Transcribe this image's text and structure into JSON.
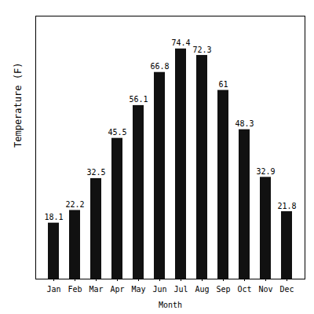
{
  "chart_data": {
    "type": "bar",
    "categories": [
      "Jan",
      "Feb",
      "Mar",
      "Apr",
      "May",
      "Jun",
      "Jul",
      "Aug",
      "Sep",
      "Oct",
      "Nov",
      "Dec"
    ],
    "values": [
      18.1,
      22.2,
      32.5,
      45.5,
      56.1,
      66.8,
      74.4,
      72.3,
      61.0,
      48.3,
      32.9,
      21.8
    ],
    "color": "#111111",
    "xlabel": "Month",
    "ylabel": "Temperature (F)",
    "ylim": [
      0,
      85
    ],
    "data_labels": true,
    "tick_labels": "x",
    "grid": false
  }
}
